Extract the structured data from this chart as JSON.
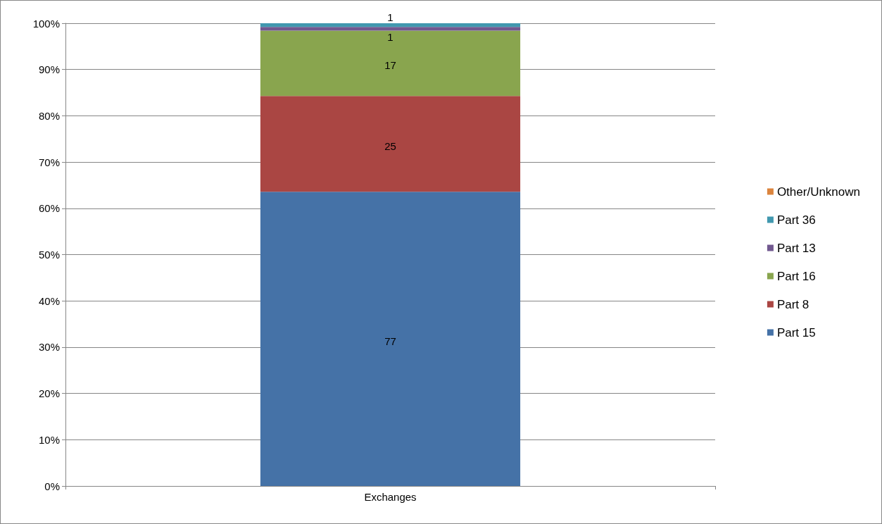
{
  "chart_data": {
    "type": "bar",
    "stacked": true,
    "categories": [
      "Exchanges"
    ],
    "series": [
      {
        "name": "Part 15",
        "color": "#4572a7",
        "values": [
          63.6
        ]
      },
      {
        "name": "Part 8",
        "color": "#aa4643",
        "values": [
          20.7
        ]
      },
      {
        "name": "Part 16",
        "color": "#89a54e",
        "values": [
          14.1
        ]
      },
      {
        "name": "Part 13",
        "color": "#71588f",
        "values": [
          0.8
        ]
      },
      {
        "name": "Part 36",
        "color": "#4198af",
        "values": [
          0.8
        ]
      },
      {
        "name": "Other/Unknown",
        "color": "#db843d",
        "values": [
          0
        ]
      }
    ],
    "annotations": [
      "77",
      "25",
      "17",
      "1",
      "1"
    ],
    "ylim": [
      0,
      100
    ],
    "yticks": [
      {
        "value": 0,
        "label": "0%"
      },
      {
        "value": 10,
        "label": "10%"
      },
      {
        "value": 20,
        "label": "20%"
      },
      {
        "value": 30,
        "label": "30%"
      },
      {
        "value": 40,
        "label": "40%"
      },
      {
        "value": 50,
        "label": "50%"
      },
      {
        "value": 60,
        "label": "60%"
      },
      {
        "value": 70,
        "label": "70%"
      },
      {
        "value": 80,
        "label": "80%"
      },
      {
        "value": 90,
        "label": "90%"
      },
      {
        "value": 100,
        "label": "100%"
      }
    ],
    "grid": "y",
    "legend": "right"
  }
}
